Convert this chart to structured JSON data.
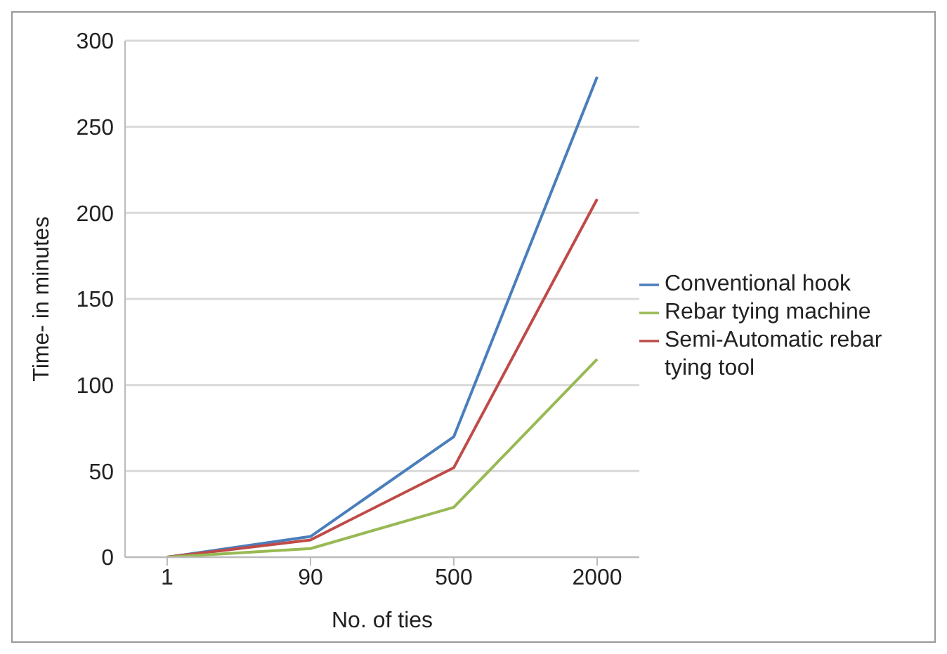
{
  "chart_data": {
    "type": "line",
    "xlabel": "No. of ties",
    "ylabel": "Time- in minutes",
    "categories": [
      "1",
      "90",
      "500",
      "2000"
    ],
    "series": [
      {
        "name": " Conventional hook",
        "color": "#4a7ebb",
        "values": [
          0,
          12,
          70,
          279
        ]
      },
      {
        "name": "Semi-Automatic rebar tying tool",
        "color": "#be4b48",
        "values": [
          0,
          10,
          52,
          208
        ]
      },
      {
        "name": "Rebar tying machine",
        "color": "#98b954",
        "values": [
          0,
          5,
          29,
          115
        ]
      }
    ],
    "ylim": [
      0,
      300
    ],
    "yticks": [
      0,
      50,
      100,
      150,
      200,
      250,
      300
    ],
    "grid": "y",
    "legend": "right",
    "marker": "none",
    "line_style": "solid"
  }
}
